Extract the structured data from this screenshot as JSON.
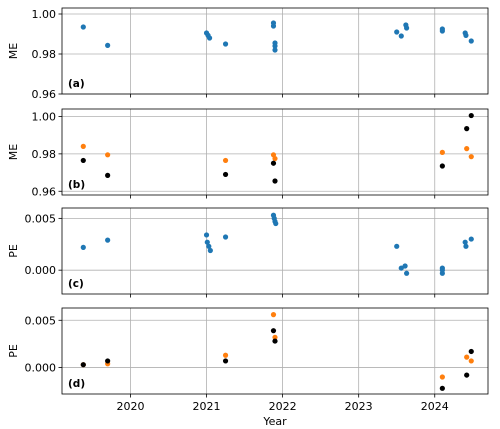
{
  "chart_data": [
    {
      "type": "scatter",
      "panel_label": "(a)",
      "ylabel": "ME",
      "ylim": [
        0.96,
        1.003
      ],
      "yticks": [
        0.96,
        0.98,
        1.0
      ],
      "ytick_labels": [
        "0.96",
        "0.98",
        "1.00"
      ],
      "xlim": [
        2019.1,
        2024.7
      ],
      "grid": true,
      "series": [
        {
          "color": "#1f77b4",
          "points": [
            [
              2019.38,
              0.9935
            ],
            [
              2019.7,
              0.9843
            ],
            [
              2021.0,
              0.9905
            ],
            [
              2021.02,
              0.9893
            ],
            [
              2021.04,
              0.988
            ],
            [
              2021.25,
              0.985
            ],
            [
              2021.88,
              0.9955
            ],
            [
              2021.88,
              0.994
            ],
            [
              2021.9,
              0.9855
            ],
            [
              2021.9,
              0.984
            ],
            [
              2021.9,
              0.982
            ],
            [
              2023.5,
              0.991
            ],
            [
              2023.56,
              0.989
            ],
            [
              2023.62,
              0.9945
            ],
            [
              2023.63,
              0.993
            ],
            [
              2024.1,
              0.9925
            ],
            [
              2024.1,
              0.9915
            ],
            [
              2024.4,
              0.9905
            ],
            [
              2024.41,
              0.9893
            ],
            [
              2024.48,
              0.9865
            ]
          ]
        }
      ]
    },
    {
      "type": "scatter",
      "panel_label": "(b)",
      "ylabel": "ME",
      "ylim": [
        0.958,
        1.004
      ],
      "yticks": [
        0.96,
        0.98,
        1.0
      ],
      "ytick_labels": [
        "0.96",
        "0.98",
        "1.00"
      ],
      "xlim": [
        2019.1,
        2024.7
      ],
      "grid": true,
      "series": [
        {
          "color": "#ff7f0e",
          "points": [
            [
              2019.38,
              0.984
            ],
            [
              2019.7,
              0.9795
            ],
            [
              2021.25,
              0.9765
            ],
            [
              2021.88,
              0.9795
            ],
            [
              2021.9,
              0.9775
            ],
            [
              2024.1,
              0.9808
            ],
            [
              2024.42,
              0.9828
            ],
            [
              2024.48,
              0.9785
            ]
          ]
        },
        {
          "color": "#000000",
          "points": [
            [
              2019.38,
              0.9765
            ],
            [
              2019.7,
              0.9685
            ],
            [
              2021.25,
              0.969
            ],
            [
              2021.88,
              0.975
            ],
            [
              2021.9,
              0.9655
            ],
            [
              2024.1,
              0.9735
            ],
            [
              2024.42,
              0.9935
            ],
            [
              2024.48,
              1.0005
            ]
          ]
        }
      ]
    },
    {
      "type": "scatter",
      "panel_label": "(c)",
      "ylabel": "PE",
      "ylim": [
        -0.0023,
        0.006
      ],
      "yticks": [
        0.0,
        0.005
      ],
      "ytick_labels": [
        "0.000",
        "0.005"
      ],
      "xlim": [
        2019.1,
        2024.7
      ],
      "grid": true,
      "series": [
        {
          "color": "#1f77b4",
          "points": [
            [
              2019.38,
              0.0022
            ],
            [
              2019.7,
              0.0029
            ],
            [
              2021.0,
              0.0034
            ],
            [
              2021.01,
              0.0027
            ],
            [
              2021.03,
              0.0023
            ],
            [
              2021.05,
              0.0019
            ],
            [
              2021.25,
              0.0032
            ],
            [
              2021.88,
              0.0053
            ],
            [
              2021.89,
              0.005
            ],
            [
              2021.9,
              0.0047
            ],
            [
              2021.91,
              0.0045
            ],
            [
              2023.5,
              0.0023
            ],
            [
              2023.56,
              0.0002
            ],
            [
              2023.61,
              0.0004
            ],
            [
              2023.63,
              -0.0003
            ],
            [
              2024.1,
              0.0002
            ],
            [
              2024.1,
              0.0
            ],
            [
              2024.1,
              -0.0003
            ],
            [
              2024.4,
              0.0027
            ],
            [
              2024.41,
              0.0023
            ],
            [
              2024.48,
              0.003
            ]
          ]
        }
      ]
    },
    {
      "type": "scatter",
      "panel_label": "(d)",
      "ylabel": "PE",
      "ylim": [
        -0.0028,
        0.0063
      ],
      "yticks": [
        0.0,
        0.005
      ],
      "ytick_labels": [
        "0.000",
        "0.005"
      ],
      "xlim": [
        2019.1,
        2024.7
      ],
      "xticks": [
        2020,
        2021,
        2022,
        2023,
        2024
      ],
      "xtick_labels": [
        "2020",
        "2021",
        "2022",
        "2023",
        "2024"
      ],
      "xlabel": "Year",
      "grid": true,
      "series": [
        {
          "color": "#ff7f0e",
          "points": [
            [
              2019.38,
              0.0003
            ],
            [
              2019.7,
              0.0004
            ],
            [
              2021.25,
              0.0013
            ],
            [
              2021.88,
              0.0056
            ],
            [
              2021.9,
              0.0032
            ],
            [
              2024.1,
              -0.001
            ],
            [
              2024.42,
              0.0011
            ],
            [
              2024.48,
              0.0007
            ]
          ]
        },
        {
          "color": "#000000",
          "points": [
            [
              2019.38,
              0.0003
            ],
            [
              2019.7,
              0.0007
            ],
            [
              2021.25,
              0.0007
            ],
            [
              2021.88,
              0.0039
            ],
            [
              2021.9,
              0.0028
            ],
            [
              2024.1,
              -0.0022
            ],
            [
              2024.42,
              -0.0008
            ],
            [
              2024.48,
              0.0017
            ]
          ]
        }
      ]
    }
  ]
}
